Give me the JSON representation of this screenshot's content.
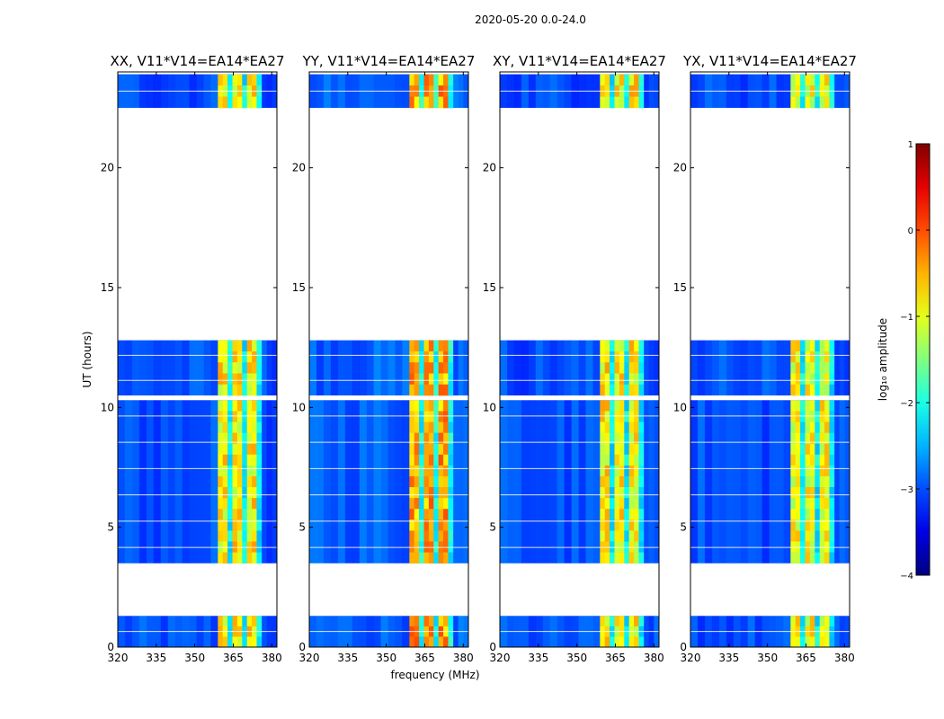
{
  "chart_data": {
    "type": "heatmap",
    "suptitle": "2020-05-20 0.0-24.0",
    "xlabel": "frequency (MHz)",
    "ylabel": "UT (hours)",
    "xlim": [
      320,
      382
    ],
    "ylim": [
      0,
      24
    ],
    "xticks": [
      320,
      335,
      350,
      365,
      380
    ],
    "xtick_labels": [
      "320",
      "335",
      "350",
      "365",
      "380"
    ],
    "yticks": [
      0,
      5,
      10,
      15,
      20
    ],
    "ytick_labels": [
      "0",
      "5",
      "10",
      "15",
      "20"
    ],
    "data_time_ranges_hours": [
      [
        0.0,
        1.3
      ],
      [
        3.5,
        10.3
      ],
      [
        10.5,
        12.8
      ],
      [
        22.5,
        23.9
      ]
    ],
    "high_amplitude_band_mhz": [
      359,
      376
    ],
    "panels": [
      {
        "title": "XX, V11*V14=EA14*EA27",
        "baseline_log10_amplitude": -3.0,
        "band_log10_amplitude": -1.0
      },
      {
        "title": "YY, V11*V14=EA14*EA27",
        "baseline_log10_amplitude": -2.9,
        "band_log10_amplitude": -0.6
      },
      {
        "title": "XY, V11*V14=EA14*EA27",
        "baseline_log10_amplitude": -3.0,
        "band_log10_amplitude": -1.0
      },
      {
        "title": "YX, V11*V14=EA14*EA27",
        "baseline_log10_amplitude": -3.0,
        "band_log10_amplitude": -1.1
      }
    ],
    "colorbar": {
      "label": "log₁₀ amplitude",
      "range": [
        -4,
        1
      ],
      "ticks": [
        1,
        0,
        -1,
        -2,
        -3,
        -4
      ],
      "tick_labels": [
        "1",
        "0",
        "−1",
        "−2",
        "−3",
        "−4"
      ],
      "colormap": "jet"
    }
  }
}
